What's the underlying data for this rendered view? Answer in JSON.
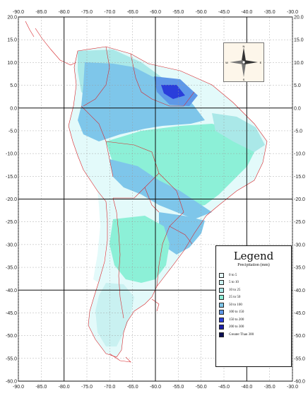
{
  "map": {
    "lon_ticks": [
      "-90.0",
      "-85.0",
      "-80.0",
      "-75.0",
      "-70.0",
      "-65.0",
      "-60.0",
      "-55.0",
      "-50.0",
      "-45.0",
      "-40.0",
      "-35.0",
      "-30.0"
    ],
    "lat_ticks": [
      "20.0",
      "15.0",
      "10.0",
      "5.0",
      "0.0",
      "-5.0",
      "-10.0",
      "-15.0",
      "-20.0",
      "-25.0",
      "-30.0",
      "-35.0",
      "-40.0",
      "-45.0",
      "-50.0",
      "-55.0",
      "-60.0"
    ],
    "lon_range": [
      -90,
      -30
    ],
    "lat_range": [
      -60,
      20
    ],
    "major_grid_every_deg": 20,
    "minor_grid_every_deg": 5,
    "border_color": "#d7262b"
  },
  "compass": {
    "n": "N",
    "s": "S",
    "e": "E",
    "w": "W"
  },
  "legend": {
    "title": "Legend",
    "subtitle": "Precipitation (mm)",
    "items": [
      {
        "label": "0 to 5",
        "color": "#e3fafa"
      },
      {
        "label": "5 to 10",
        "color": "#c9f1f1"
      },
      {
        "label": "10 to 25",
        "color": "#aae8e8"
      },
      {
        "label": "25 to 50",
        "color": "#8cf0d7"
      },
      {
        "label": "50 to 100",
        "color": "#7ec6ea"
      },
      {
        "label": "100 to 150",
        "color": "#5f98e8"
      },
      {
        "label": "150 to 200",
        "color": "#2a3edb"
      },
      {
        "label": "200 to 300",
        "color": "#1a1fa8"
      },
      {
        "label": "Greater Than 300",
        "color": "#0b0f55"
      }
    ]
  }
}
